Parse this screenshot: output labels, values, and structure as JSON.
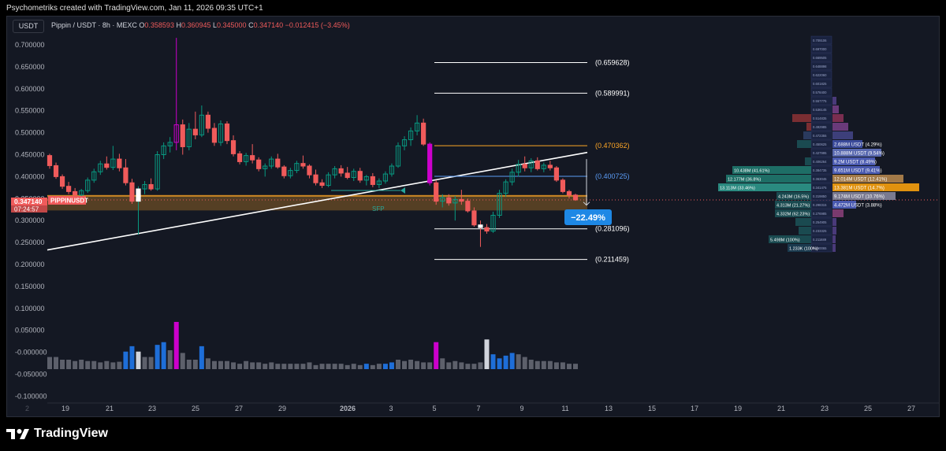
{
  "header": {
    "credit": "Psychometriks created with TradingView.com, Jan 11, 2026 09:35 UTC+1",
    "symbol_box": "USDT",
    "legend_title": "Pippin / USDT · 8h · MEXC",
    "ohlc": [
      {
        "k": "O",
        "v": "0.358593"
      },
      {
        "k": "H",
        "v": "0.360945"
      },
      {
        "k": "L",
        "v": "0.345000"
      },
      {
        "k": "C",
        "v": "0.347140"
      }
    ],
    "change": "−0.012415 (−3.45%)"
  },
  "brand": {
    "name": "TradingView"
  },
  "price_label": {
    "price": "0.347140",
    "countdown": "07:24:57",
    "ticker": "PIPPINUSDT"
  },
  "annotations": {
    "sfp": "SFP",
    "change_badge": "−22.49%"
  },
  "colors": {
    "bull": "#089981",
    "bear": "#f05b5b",
    "magenta": "#cc00cc",
    "zone": "#ffa726",
    "blue": "#1e88e5"
  },
  "chart_data": {
    "type": "candlestick",
    "y_axis": {
      "min": -0.1,
      "max": 0.7,
      "ticks": [
        "0.700000",
        "0.650000",
        "0.600000",
        "0.550000",
        "0.500000",
        "0.450000",
        "0.400000",
        "0.350000",
        "0.300000",
        "0.250000",
        "0.200000",
        "0.150000",
        "0.100000",
        "0.050000",
        "-0.000000",
        "-0.050000",
        "-0.100000"
      ]
    },
    "x_axis": {
      "ticks": [
        "19",
        "21",
        "23",
        "25",
        "27",
        "29",
        "2026",
        "3",
        "5",
        "7",
        "9",
        "11",
        "13",
        "15",
        "17",
        "19",
        "21",
        "23",
        "25",
        "27"
      ]
    },
    "candles": [
      [
        0.448,
        0.452,
        0.418,
        0.425
      ],
      [
        0.425,
        0.432,
        0.395,
        0.4
      ],
      [
        0.4,
        0.405,
        0.372,
        0.378
      ],
      [
        0.378,
        0.388,
        0.36,
        0.366
      ],
      [
        0.366,
        0.374,
        0.352,
        0.358
      ],
      [
        0.358,
        0.372,
        0.352,
        0.368
      ],
      [
        0.368,
        0.398,
        0.363,
        0.392
      ],
      [
        0.392,
        0.418,
        0.386,
        0.411
      ],
      [
        0.411,
        0.436,
        0.404,
        0.429
      ],
      [
        0.429,
        0.446,
        0.416,
        0.421
      ],
      [
        0.421,
        0.47,
        0.415,
        0.44
      ],
      [
        0.44,
        0.452,
        0.412,
        0.42
      ],
      [
        0.42,
        0.44,
        0.38,
        0.386
      ],
      [
        0.386,
        0.395,
        0.338,
        0.344
      ],
      [
        0.344,
        0.378,
        0.268,
        0.372
      ],
      [
        0.372,
        0.39,
        0.36,
        0.382
      ],
      [
        0.382,
        0.396,
        0.368,
        0.372
      ],
      [
        0.372,
        0.458,
        0.368,
        0.45
      ],
      [
        0.45,
        0.478,
        0.44,
        0.47
      ],
      [
        0.47,
        0.49,
        0.455,
        0.478
      ],
      [
        0.478,
        0.716,
        0.46,
        0.518
      ],
      [
        0.518,
        0.53,
        0.45,
        0.468
      ],
      [
        0.468,
        0.522,
        0.46,
        0.508
      ],
      [
        0.508,
        0.548,
        0.485,
        0.495
      ],
      [
        0.495,
        0.562,
        0.49,
        0.54
      ],
      [
        0.54,
        0.548,
        0.5,
        0.51
      ],
      [
        0.51,
        0.522,
        0.47,
        0.478
      ],
      [
        0.478,
        0.528,
        0.47,
        0.52
      ],
      [
        0.52,
        0.526,
        0.474,
        0.482
      ],
      [
        0.482,
        0.494,
        0.446,
        0.452
      ],
      [
        0.452,
        0.458,
        0.428,
        0.434
      ],
      [
        0.434,
        0.454,
        0.425,
        0.448
      ],
      [
        0.448,
        0.474,
        0.43,
        0.438
      ],
      [
        0.438,
        0.444,
        0.412,
        0.418
      ],
      [
        0.418,
        0.43,
        0.4,
        0.424
      ],
      [
        0.424,
        0.446,
        0.418,
        0.44
      ],
      [
        0.44,
        0.452,
        0.418,
        0.422
      ],
      [
        0.422,
        0.426,
        0.396,
        0.402
      ],
      [
        0.402,
        0.42,
        0.396,
        0.414
      ],
      [
        0.414,
        0.436,
        0.408,
        0.43
      ],
      [
        0.43,
        0.448,
        0.418,
        0.424
      ],
      [
        0.424,
        0.428,
        0.396,
        0.404
      ],
      [
        0.404,
        0.416,
        0.38,
        0.386
      ],
      [
        0.386,
        0.394,
        0.374,
        0.38
      ],
      [
        0.38,
        0.41,
        0.376,
        0.404
      ],
      [
        0.404,
        0.424,
        0.396,
        0.418
      ],
      [
        0.418,
        0.426,
        0.4,
        0.408
      ],
      [
        0.408,
        0.422,
        0.394,
        0.398
      ],
      [
        0.398,
        0.418,
        0.39,
        0.412
      ],
      [
        0.412,
        0.42,
        0.386,
        0.392
      ],
      [
        0.392,
        0.404,
        0.38,
        0.4
      ],
      [
        0.4,
        0.408,
        0.376,
        0.382
      ],
      [
        0.382,
        0.396,
        0.374,
        0.39
      ],
      [
        0.39,
        0.412,
        0.384,
        0.406
      ],
      [
        0.406,
        0.43,
        0.4,
        0.424
      ],
      [
        0.424,
        0.478,
        0.42,
        0.47
      ],
      [
        0.47,
        0.492,
        0.46,
        0.484
      ],
      [
        0.484,
        0.512,
        0.47,
        0.504
      ],
      [
        0.504,
        0.54,
        0.494,
        0.522
      ],
      [
        0.522,
        0.532,
        0.47,
        0.474
      ],
      [
        0.474,
        0.478,
        0.38,
        0.386
      ],
      [
        0.386,
        0.392,
        0.336,
        0.344
      ],
      [
        0.344,
        0.36,
        0.33,
        0.352
      ],
      [
        0.352,
        0.36,
        0.334,
        0.34
      ],
      [
        0.34,
        0.356,
        0.3,
        0.348
      ],
      [
        0.348,
        0.37,
        0.336,
        0.344
      ],
      [
        0.344,
        0.35,
        0.318,
        0.322
      ],
      [
        0.322,
        0.33,
        0.286,
        0.29
      ],
      [
        0.29,
        0.3,
        0.24,
        0.284
      ],
      [
        0.284,
        0.292,
        0.27,
        0.276
      ],
      [
        0.276,
        0.32,
        0.272,
        0.312
      ],
      [
        0.312,
        0.37,
        0.306,
        0.362
      ],
      [
        0.362,
        0.394,
        0.354,
        0.388
      ],
      [
        0.388,
        0.418,
        0.38,
        0.41
      ],
      [
        0.41,
        0.438,
        0.4,
        0.428
      ],
      [
        0.428,
        0.446,
        0.412,
        0.42
      ],
      [
        0.42,
        0.442,
        0.41,
        0.436
      ],
      [
        0.436,
        0.444,
        0.414,
        0.418
      ],
      [
        0.418,
        0.432,
        0.41,
        0.426
      ],
      [
        0.426,
        0.436,
        0.414,
        0.42
      ],
      [
        0.42,
        0.424,
        0.388,
        0.392
      ],
      [
        0.392,
        0.396,
        0.362,
        0.366
      ],
      [
        0.366,
        0.37,
        0.35,
        0.358
      ],
      [
        0.358,
        0.361,
        0.345,
        0.347
      ]
    ],
    "volume": [
      18,
      18,
      14,
      14,
      12,
      14,
      12,
      12,
      10,
      12,
      10,
      11,
      26,
      34,
      26,
      18,
      18,
      36,
      40,
      28,
      70,
      24,
      14,
      14,
      34,
      16,
      12,
      12,
      12,
      10,
      8,
      12,
      10,
      10,
      8,
      10,
      8,
      8,
      8,
      8,
      8,
      10,
      6,
      8,
      8,
      8,
      8,
      6,
      8,
      6,
      8,
      6,
      8,
      8,
      10,
      14,
      12,
      14,
      12,
      10,
      10,
      40,
      16,
      10,
      12,
      10,
      8,
      8,
      10,
      44,
      22,
      16,
      20,
      24,
      22,
      18,
      14,
      12,
      12,
      12,
      10,
      10,
      8,
      8
    ],
    "horizontal_levels": [
      {
        "label": "(0.659628)",
        "value": 0.659628,
        "color": "#ffffff"
      },
      {
        "label": "(0.589991)",
        "value": 0.589991,
        "color": "#ffffff"
      },
      {
        "label": "(0.470362)",
        "value": 0.470362,
        "color": "#ffa726"
      },
      {
        "label": "(0.400725)",
        "value": 0.400725,
        "color": "#5b9cf6"
      },
      {
        "label": "(0.281096)",
        "value": 0.281096,
        "color": "#ffffff"
      },
      {
        "label": "(0.211459)",
        "value": 0.211459,
        "color": "#ffffff"
      }
    ],
    "volume_profile": [
      {
        "price": "0.709106",
        "label": "",
        "width": 0,
        "color": "#2a3a6e"
      },
      {
        "price": "0.697000",
        "label": "",
        "width": 0,
        "color": "#2a3a6e"
      },
      {
        "price": "0.669505",
        "label": "",
        "width": 0,
        "color": "#2a3a6e"
      },
      {
        "price": "0.648898",
        "label": "",
        "width": 0,
        "color": "#2a3a6e"
      },
      {
        "price": "0.622060",
        "label": "",
        "width": 0,
        "color": "#2a3a6e"
      },
      {
        "price": "0.601825",
        "label": "",
        "width": 0,
        "color": "#2a3a6e"
      },
      {
        "price": "0.578400",
        "label": "",
        "width": 0,
        "color": "#2a3a6e"
      },
      {
        "price": "0.557775",
        "label": "",
        "width": 5,
        "color": "#4a3a7a"
      },
      {
        "price": "0.536145",
        "label": "",
        "width": 8,
        "color": "#6a3a7a"
      },
      {
        "price": "0.514835",
        "label": "",
        "width": 14,
        "color": "#7a2e50"
      },
      {
        "price": "0.492985",
        "label": "",
        "width": 20,
        "color": "#6a3a7a"
      },
      {
        "price": "0.472355",
        "label": "",
        "width": 26,
        "color": "#3d3f7a"
      },
      {
        "price": "0.450625",
        "label": "2.688M USDT (4.29%)",
        "width": 38,
        "color": "#3a4a9a"
      },
      {
        "price": "0.427995",
        "label": "10.888M USDT (9.54%)",
        "width": 62,
        "color": "#5a6ab0"
      },
      {
        "price": "0.406264",
        "label": "9.2M USDT (8.49%)",
        "width": 54,
        "color": "#4a5ab0"
      },
      {
        "price": "0.384735",
        "label": "9.651M USDT (9.41%)",
        "width": 60,
        "color": "#4a5ab0"
      },
      {
        "price": "0.363045",
        "label": "12.014M USDT (12.41%)",
        "width": 90,
        "color": "#a37a48"
      },
      {
        "price": "0.341475",
        "label": "13.381M USDT (14.7%)",
        "width": 110,
        "color": "#e0920f"
      },
      {
        "price": "0.319850",
        "label": "9.174M USDT (10.76%)",
        "width": 80,
        "color": "#7a7a90"
      },
      {
        "price": "0.298315",
        "label": "4.472M USDT (3.88%)",
        "width": 30,
        "color": "#4a5ab0"
      },
      {
        "price": "0.276985",
        "label": "",
        "width": 14,
        "color": "#7a3a6e"
      },
      {
        "price": "0.254905",
        "label": "",
        "width": 5,
        "color": "#4a3a7a"
      },
      {
        "price": "0.233325",
        "label": "",
        "width": 5,
        "color": "#4a3a7a"
      },
      {
        "price": "0.211689",
        "label": "",
        "width": 4,
        "color": "#4a3a7a"
      },
      {
        "price": "0.190065",
        "label": "",
        "width": 4,
        "color": "#4a3a7a"
      }
    ],
    "volume_profile_left": [
      {
        "row": 9,
        "label": "",
        "width": 24,
        "color": "#7a2e32"
      },
      {
        "row": 10,
        "label": "",
        "width": 6,
        "color": "#7a2e32"
      },
      {
        "row": 11,
        "label": "",
        "width": 10,
        "color": "#2a3a5e"
      },
      {
        "row": 12,
        "label": "",
        "width": 18,
        "color": "#1a4a50"
      },
      {
        "row": 14,
        "label": "",
        "width": 8,
        "color": "#1a4a50"
      },
      {
        "row": 15,
        "label": "10.438M (41.61%)",
        "width": 100,
        "color": "#1e6e66"
      },
      {
        "row": 16,
        "label": "12.177M (36.8%)",
        "width": 108,
        "color": "#1e6e66"
      },
      {
        "row": 17,
        "label": "13.113M (33.46%)",
        "width": 118,
        "color": "#2a8a80"
      },
      {
        "row": 18,
        "label": "4.243M (16.5%)",
        "width": 44,
        "color": "#1a4a50"
      },
      {
        "row": 19,
        "label": "4.313M (21.27%)",
        "width": 46,
        "color": "#1a4a50"
      },
      {
        "row": 20,
        "label": "4.332M (62.23%)",
        "width": 46,
        "color": "#1a4a50"
      },
      {
        "row": 21,
        "label": "",
        "width": 20,
        "color": "#1a4a50"
      },
      {
        "row": 22,
        "label": "",
        "width": 16,
        "color": "#1a4a50"
      },
      {
        "row": 23,
        "label": "5.498M (100%)",
        "width": 54,
        "color": "#1a4a50"
      },
      {
        "row": 24,
        "label": "1.233K (100%)",
        "width": 30,
        "color": "#1a3a4e"
      }
    ]
  }
}
